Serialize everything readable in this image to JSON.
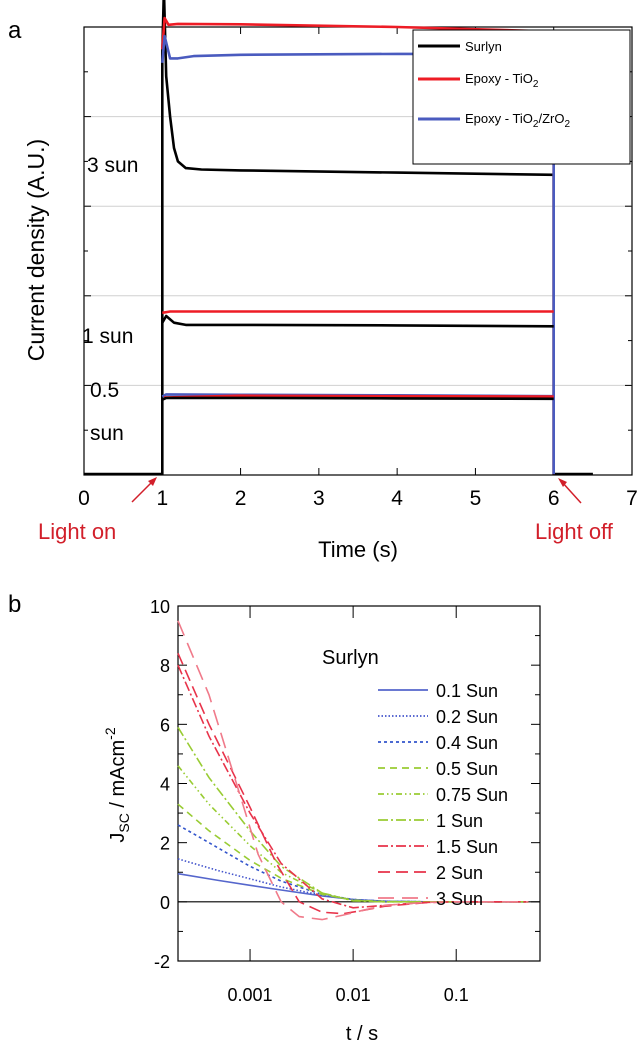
{
  "panels": {
    "a": {
      "letter": "a"
    },
    "b": {
      "letter": "b"
    }
  },
  "chart_data": [
    {
      "panel": "a",
      "type": "line",
      "xlabel": "Time (s)",
      "ylabel": "Current density (A.U.)",
      "xlim": [
        0,
        7
      ],
      "xticks": [
        "0",
        "1",
        "2",
        "3",
        "4",
        "5",
        "6",
        "7"
      ],
      "ylim": [
        0,
        10
      ],
      "grid": true,
      "legend_position": "top-right",
      "legend": [
        {
          "text": "Surlyn",
          "color": "#000000"
        },
        {
          "text": "Epoxy - TiO",
          "sub": "2",
          "color": "#ee1c25"
        },
        {
          "text": "Epoxy - TiO",
          "sub": "2",
          "text2": "/ZrO",
          "sub2": "2",
          "color": "#4a5bbf"
        }
      ],
      "annotations": {
        "light_on": "Light on",
        "light_off": "Light off",
        "level_3sun": "3 sun",
        "level_1sun": "1 sun",
        "level_05sun_a": "0.5",
        "level_05sun_b": "sun"
      },
      "series": [
        {
          "name": "Surlyn",
          "color": "#000000",
          "points": [
            [
              0,
              0.02
            ],
            [
              1.0,
              0.02
            ],
            [
              1.0,
              9.4
            ],
            [
              1.02,
              10.85
            ],
            [
              1.05,
              8.9
            ],
            [
              1.1,
              8.0
            ],
            [
              1.15,
              7.3
            ],
            [
              1.2,
              7.0
            ],
            [
              1.3,
              6.85
            ],
            [
              1.5,
              6.82
            ],
            [
              2,
              6.8
            ],
            [
              4,
              6.75
            ],
            [
              6.0,
              6.7
            ],
            [
              6.0,
              0.02
            ],
            [
              6.5,
              0.02
            ]
          ]
        },
        {
          "name": "Epoxy - TiO2",
          "color": "#ee1c25",
          "points": [
            [
              1.0,
              9.5
            ],
            [
              1.03,
              10.2
            ],
            [
              1.08,
              10.05
            ],
            [
              1.2,
              10.07
            ],
            [
              2,
              10.06
            ],
            [
              4,
              10.0
            ],
            [
              6.0,
              9.9
            ],
            [
              6.0,
              0.02
            ]
          ]
        },
        {
          "name": "Epoxy - TiO2/ZrO2",
          "color": "#4a5bbf",
          "points": [
            [
              1.0,
              9.2
            ],
            [
              1.03,
              9.8
            ],
            [
              1.1,
              9.3
            ],
            [
              1.2,
              9.3
            ],
            [
              1.4,
              9.35
            ],
            [
              2,
              9.38
            ],
            [
              4,
              9.4
            ],
            [
              6.0,
              9.4
            ],
            [
              6.0,
              0.02
            ]
          ]
        },
        {
          "name": "Surlyn 1 sun",
          "color": "#000000",
          "points": [
            [
              1.0,
              3.4
            ],
            [
              1.05,
              3.55
            ],
            [
              1.15,
              3.4
            ],
            [
              1.3,
              3.35
            ],
            [
              2,
              3.35
            ],
            [
              4,
              3.34
            ],
            [
              6.0,
              3.32
            ]
          ]
        },
        {
          "name": "Epoxy - TiO2 1 sun",
          "color": "#ee1c25",
          "points": [
            [
              1.0,
              3.62
            ],
            [
              1.1,
              3.65
            ],
            [
              2,
              3.65
            ],
            [
              4,
              3.65
            ],
            [
              6.0,
              3.65
            ]
          ]
        },
        {
          "name": "Epoxy - TiO2/ZrO2 0.5 sun",
          "color": "#4a5bbf",
          "points": [
            [
              1.0,
              1.75
            ],
            [
              1.05,
              1.8
            ],
            [
              2,
              1.79
            ],
            [
              4,
              1.78
            ],
            [
              6.0,
              1.76
            ]
          ]
        },
        {
          "name": "Epoxy - TiO2 0.5 sun",
          "color": "#ee1c25",
          "points": [
            [
              1.02,
              1.73
            ],
            [
              2,
              1.77
            ],
            [
              4,
              1.76
            ],
            [
              6.0,
              1.75
            ]
          ]
        },
        {
          "name": "Surlyn 0.5 sun",
          "color": "#000000",
          "points": [
            [
              1.0,
              1.68
            ],
            [
              1.05,
              1.72
            ],
            [
              2,
              1.72
            ],
            [
              4,
              1.71
            ],
            [
              6.0,
              1.7
            ]
          ]
        }
      ]
    },
    {
      "panel": "b",
      "type": "line",
      "xlabel": "t / s",
      "ylabel_main": "J",
      "ylabel_sub": "SC",
      "ylabel_rest": " / mAcm",
      "ylabel_sup": "-2",
      "xscale": "log",
      "xlim": [
        0.0002,
        0.65
      ],
      "xticks": [
        "0.001",
        "0.01",
        "0.1"
      ],
      "ylim": [
        -2,
        10
      ],
      "yticks": [
        "-2",
        "0",
        "2",
        "4",
        "6",
        "8",
        "10"
      ],
      "grid": false,
      "legend_position": "top-right",
      "legend_title": "Surlyn",
      "series": [
        {
          "name": "0.1 Sun",
          "color": "#5566cc",
          "dash": "",
          "x": [
            0.0002,
            0.0005,
            0.001,
            0.002,
            0.005,
            0.01,
            0.02,
            0.05,
            0.1,
            0.5
          ],
          "y": [
            0.95,
            0.72,
            0.56,
            0.4,
            0.2,
            0.08,
            0.02,
            0.0,
            0.0,
            0.0
          ]
        },
        {
          "name": "0.2 Sun",
          "color": "#4455cc",
          "dash": "1.5,2",
          "x": [
            0.0002,
            0.0005,
            0.001,
            0.002,
            0.005,
            0.01,
            0.02,
            0.05,
            0.1,
            0.5
          ],
          "y": [
            1.45,
            1.05,
            0.78,
            0.5,
            0.22,
            0.08,
            0.02,
            0.0,
            0.0,
            0.0
          ]
        },
        {
          "name": "0.4 Sun",
          "color": "#3355cc",
          "dash": "3,3",
          "x": [
            0.0002,
            0.0004,
            0.001,
            0.002,
            0.005,
            0.01,
            0.02,
            0.05,
            0.1,
            0.5
          ],
          "y": [
            2.6,
            2.0,
            1.2,
            0.7,
            0.25,
            0.08,
            0.02,
            0.0,
            0.0,
            0.0
          ]
        },
        {
          "name": "0.5 Sun",
          "color": "#99cc33",
          "dash": "7,5",
          "x": [
            0.0002,
            0.0004,
            0.001,
            0.002,
            0.005,
            0.01,
            0.02,
            0.05,
            0.1,
            0.5
          ],
          "y": [
            3.3,
            2.4,
            1.4,
            0.8,
            0.25,
            0.06,
            0.01,
            0.0,
            0.0,
            0.0
          ]
        },
        {
          "name": "0.75 Sun",
          "color": "#99cc33",
          "dash": "6,3,1.5,3,1.5,3",
          "x": [
            0.0002,
            0.0004,
            0.001,
            0.002,
            0.005,
            0.01,
            0.02,
            0.05,
            0.1,
            0.5
          ],
          "y": [
            4.6,
            3.3,
            1.9,
            1.0,
            0.3,
            0.05,
            0.0,
            0.0,
            0.0,
            0.0
          ]
        },
        {
          "name": "1 Sun",
          "color": "#99cc33",
          "dash": "10,3,2,3",
          "x": [
            0.0002,
            0.0004,
            0.001,
            0.002,
            0.005,
            0.01,
            0.02,
            0.05,
            0.1,
            0.5
          ],
          "y": [
            5.9,
            4.2,
            2.4,
            1.2,
            0.3,
            0.03,
            0.0,
            0.0,
            0.0,
            0.0
          ]
        },
        {
          "name": "1.5 Sun",
          "color": "#e8334a",
          "dash": "10,3,2,3",
          "x": [
            0.0002,
            0.0004,
            0.001,
            0.002,
            0.005,
            0.01,
            0.02,
            0.05,
            0.1,
            0.5
          ],
          "y": [
            8.0,
            5.6,
            3.0,
            1.3,
            0.1,
            -0.2,
            -0.12,
            -0.02,
            0.0,
            0.0
          ]
        },
        {
          "name": "2 Sun",
          "color": "#e8334a",
          "dash": "12,6",
          "x": [
            0.0002,
            0.0004,
            0.001,
            0.0018,
            0.003,
            0.005,
            0.008,
            0.012,
            0.02,
            0.05,
            0.1,
            0.5
          ],
          "y": [
            8.4,
            6.0,
            3.2,
            1.3,
            0.0,
            -0.35,
            -0.4,
            -0.3,
            -0.15,
            -0.03,
            0.0,
            0.0
          ]
        },
        {
          "name": "3 Sun",
          "color": "#f07a8a",
          "dash": "16,8",
          "x": [
            0.0002,
            0.0004,
            0.0008,
            0.0012,
            0.002,
            0.003,
            0.005,
            0.008,
            0.012,
            0.02,
            0.05,
            0.1,
            0.5
          ],
          "y": [
            9.5,
            7.0,
            3.6,
            1.6,
            0.0,
            -0.5,
            -0.6,
            -0.45,
            -0.3,
            -0.12,
            -0.02,
            0.0,
            0.0
          ]
        }
      ]
    }
  ]
}
